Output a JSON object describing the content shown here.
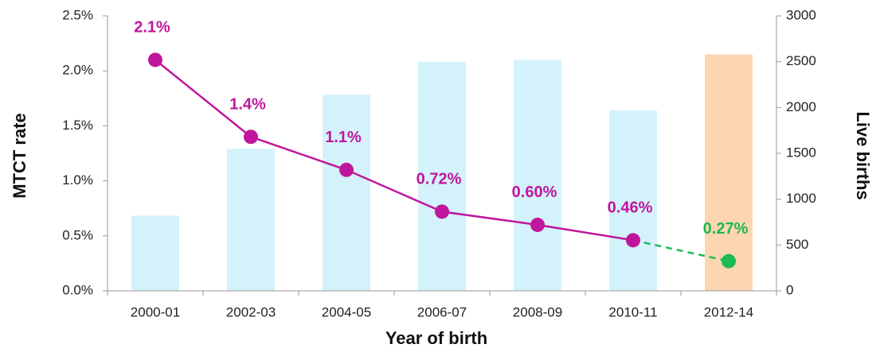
{
  "chart_data": {
    "type": "bar-line",
    "xlabel": "Year of birth",
    "ylabel": "MTCT rate",
    "y2label": "Live births",
    "categories": [
      "2000-01",
      "2002-03",
      "2004-05",
      "2006-07",
      "2008-09",
      "2010-11",
      "2012-14"
    ],
    "ylim": [
      0,
      2.5
    ],
    "yticks": [
      {
        "value": 0,
        "label": "0.0%"
      },
      {
        "value": 0.5,
        "label": "0.5%"
      },
      {
        "value": 1.0,
        "label": "1.0%"
      },
      {
        "value": 1.5,
        "label": "1.5%"
      },
      {
        "value": 2.0,
        "label": "2.0%"
      },
      {
        "value": 2.5,
        "label": "2.5%"
      }
    ],
    "y2lim": [
      0,
      3000
    ],
    "y2ticks": [
      0,
      500,
      1000,
      1500,
      2000,
      2500,
      3000
    ],
    "series": [
      {
        "type": "bar",
        "axis": "y2",
        "colors": [
          "#d4f2fb",
          "#d4f2fb",
          "#d4f2fb",
          "#d4f2fb",
          "#d4f2fb",
          "#d4f2fb",
          "#fdd5b0"
        ],
        "values": [
          820,
          1550,
          2140,
          2500,
          2520,
          1970,
          2580
        ]
      },
      {
        "type": "line",
        "colors": [
          "#c0169d",
          "#c0169d",
          "#c0169d",
          "#c0169d",
          "#c0169d",
          "#c0169d",
          "#1db954"
        ],
        "dashed_last_segment": true,
        "values": [
          2.1,
          1.4,
          1.1,
          0.72,
          0.6,
          0.46,
          0.27
        ],
        "value_labels": [
          "2.1%",
          "1.4%",
          "1.1%",
          "0.72%",
          "0.60%",
          "0.46%",
          "0.27%"
        ]
      }
    ]
  }
}
